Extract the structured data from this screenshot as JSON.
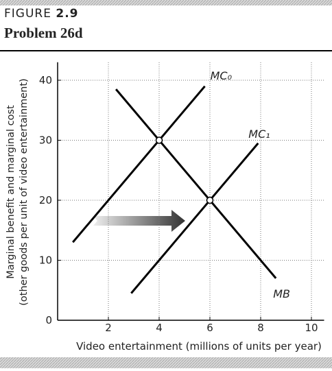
{
  "figure": {
    "label": "FIGURE",
    "number": "2.9"
  },
  "title": "Problem 26d",
  "chart_data": {
    "type": "line",
    "y_label": [
      "Marginal benefit and marginal cost",
      "(other goods per unit of video entertainment)"
    ],
    "x_label": "Video entertainment (millions of units per year)",
    "xlim": [
      0,
      10.5
    ],
    "ylim": [
      0,
      43
    ],
    "xticks": [
      2,
      4,
      6,
      8,
      10
    ],
    "yticks": [
      0,
      10,
      20,
      30,
      40
    ],
    "grid": true,
    "series": [
      {
        "name": "MC₀",
        "color": "#000000",
        "x": [
          0.6,
          5.8
        ],
        "values": [
          13,
          39
        ]
      },
      {
        "name": "MC₁",
        "color": "#000000",
        "x": [
          2.9,
          7.9
        ],
        "values": [
          4.5,
          29.5
        ]
      },
      {
        "name": "MB",
        "color": "#000000",
        "x": [
          2.3,
          8.6
        ],
        "values": [
          38.5,
          7
        ]
      }
    ],
    "points": {
      "x": [
        4,
        6
      ],
      "values": [
        30,
        20
      ]
    }
  }
}
